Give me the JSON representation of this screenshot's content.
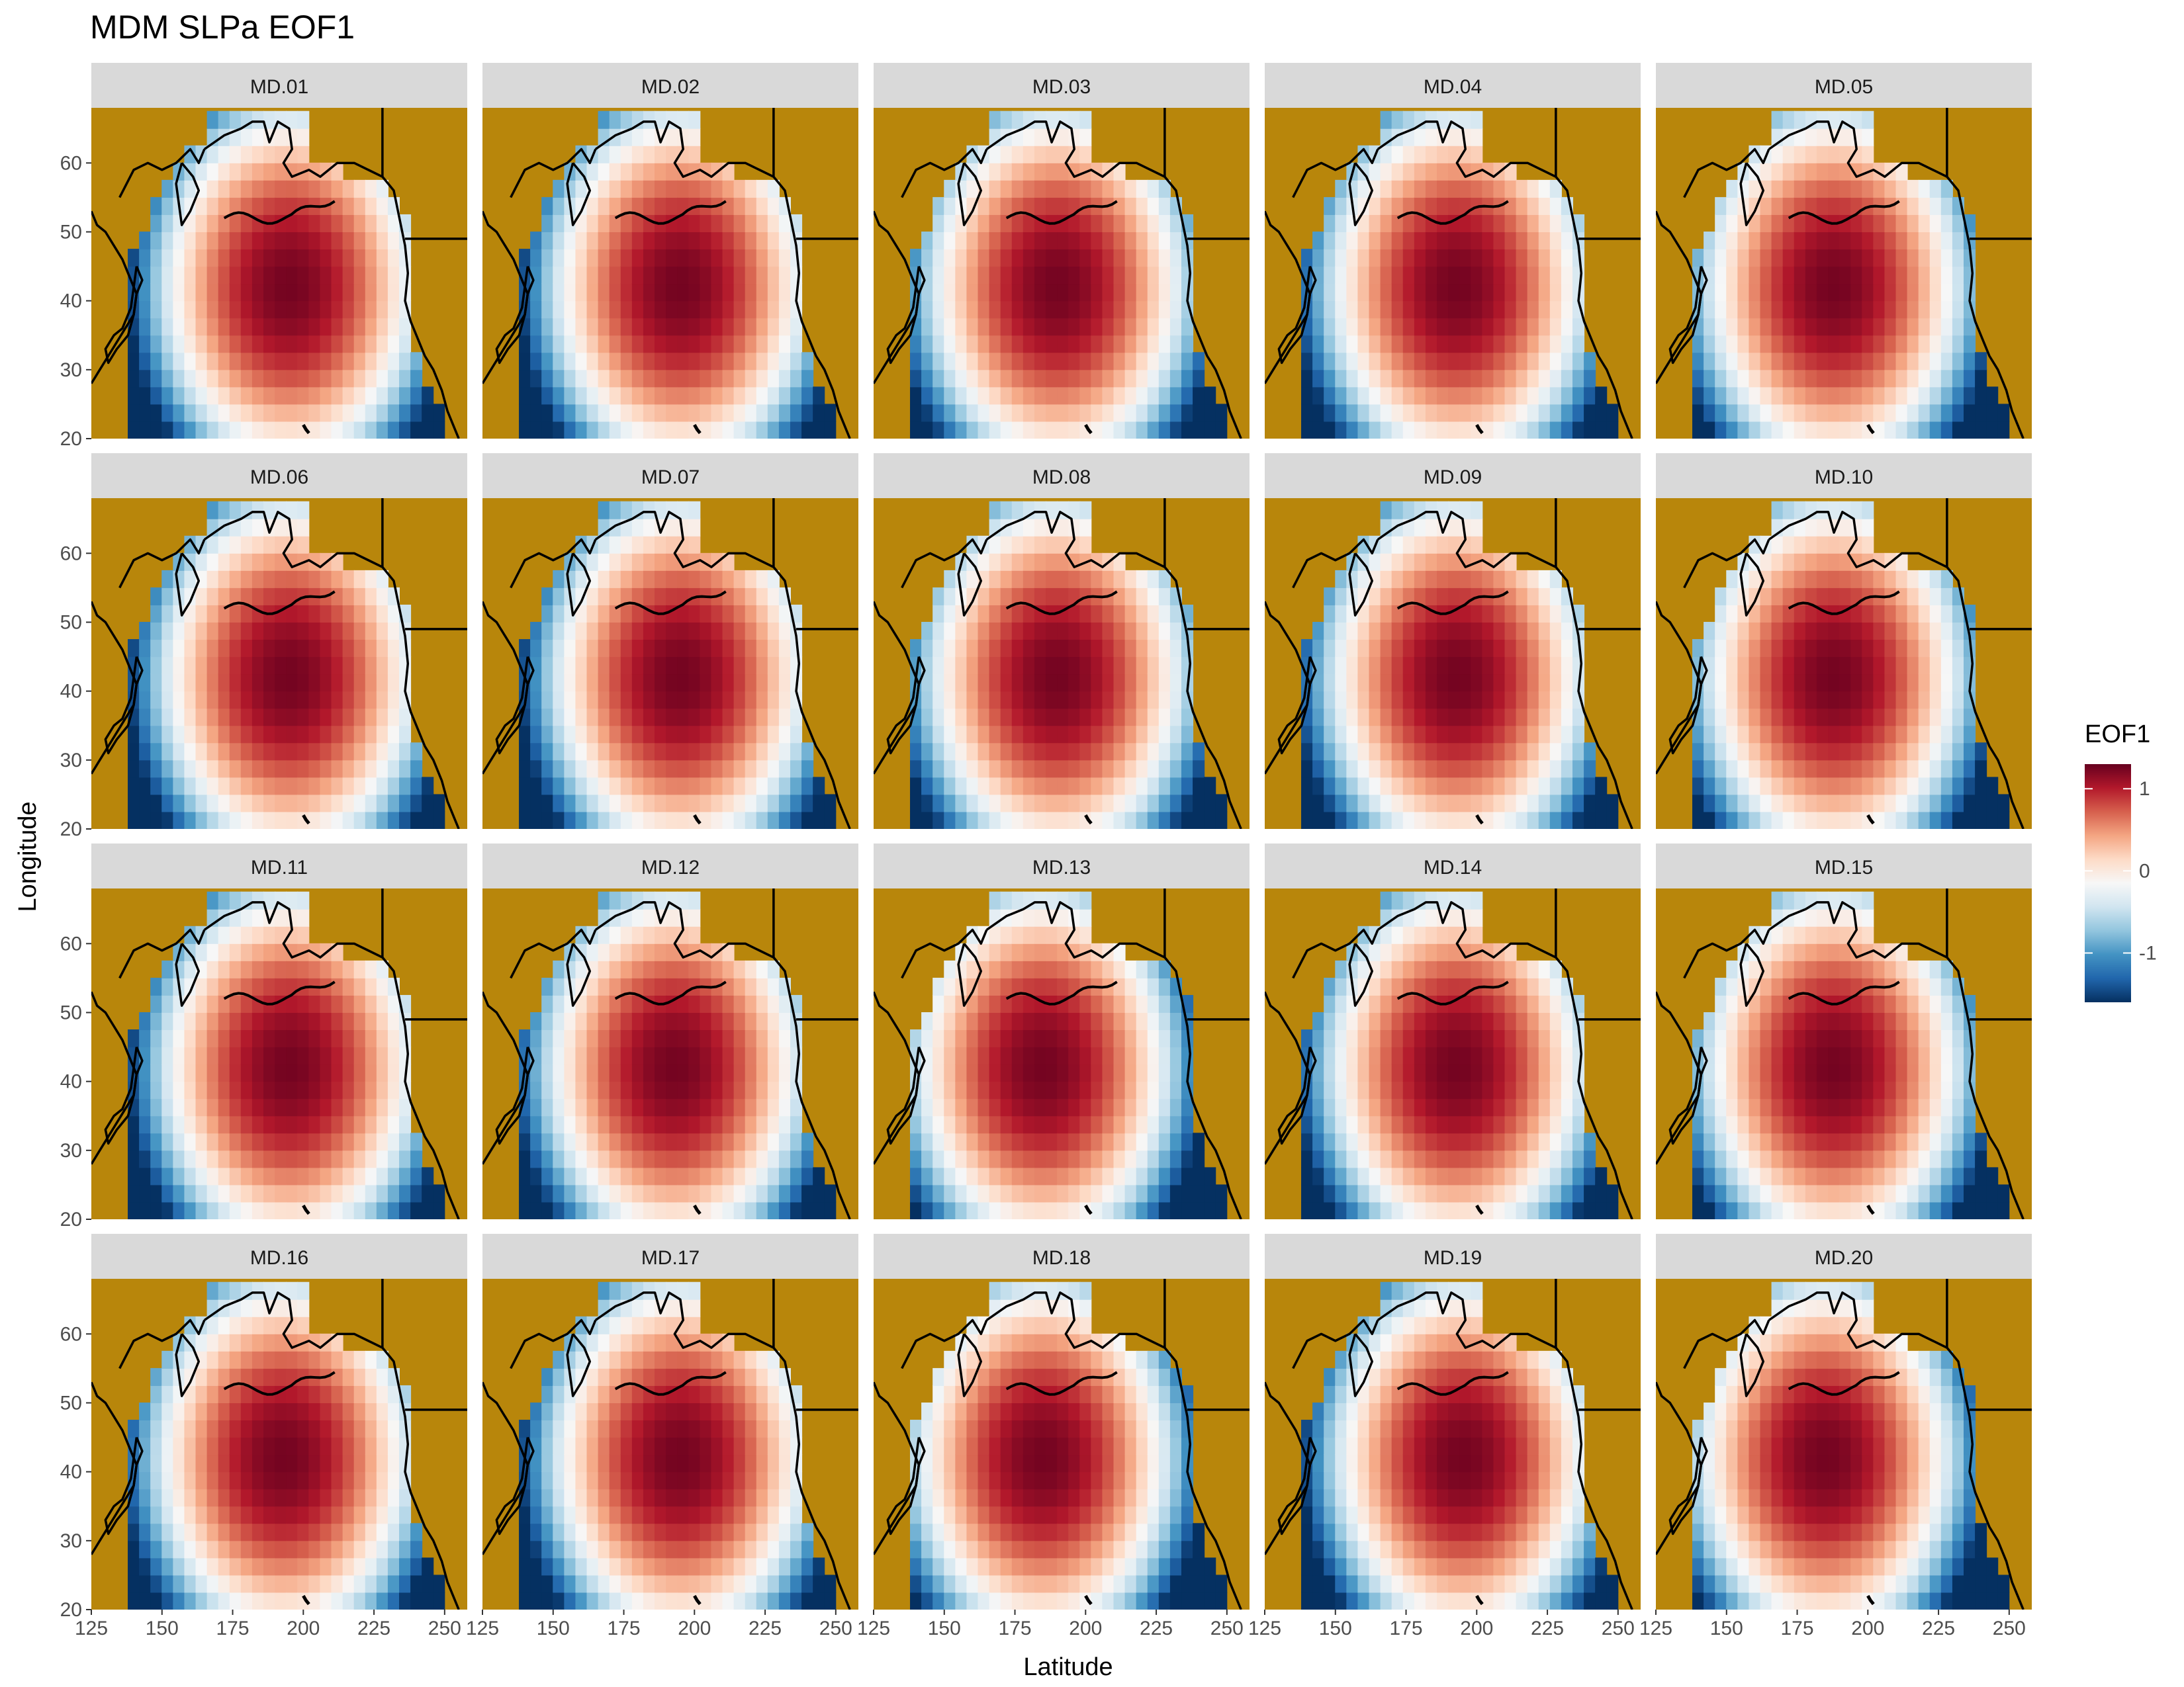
{
  "chart_data": {
    "type": "heatmap",
    "title": "MDM SLPa EOF1",
    "xlabel": "Latitude",
    "ylabel": "Longitude",
    "xlim": [
      125,
      258
    ],
    "ylim": [
      20,
      68
    ],
    "x_ticks": [
      "125",
      "150",
      "175",
      "200",
      "225",
      "250"
    ],
    "y_ticks": [
      "20",
      "30",
      "40",
      "50",
      "60"
    ],
    "x_tick_values": [
      125,
      150,
      175,
      200,
      225,
      250
    ],
    "y_tick_values": [
      20,
      30,
      40,
      50,
      60
    ],
    "grid": false,
    "facets": [
      "MD.01",
      "MD.02",
      "MD.03",
      "MD.04",
      "MD.05",
      "MD.06",
      "MD.07",
      "MD.08",
      "MD.09",
      "MD.10",
      "MD.11",
      "MD.12",
      "MD.13",
      "MD.14",
      "MD.15",
      "MD.16",
      "MD.17",
      "MD.18",
      "MD.19",
      "MD.20"
    ],
    "facet_layout": {
      "rows": 4,
      "cols": 5
    },
    "pattern_peak_lon": [
      195,
      195,
      190,
      193,
      188,
      195,
      195,
      190,
      193,
      188,
      195,
      193,
      185,
      193,
      188,
      193,
      195,
      185,
      195,
      185
    ],
    "pattern_peak_lat": 42,
    "land_color": "#B8860B",
    "legend": {
      "title": "EOF1",
      "position": "right",
      "limits": [
        -1.6,
        1.3
      ],
      "ticks": [
        1,
        0,
        -1
      ],
      "tick_labels": [
        "1",
        "0",
        "-1"
      ],
      "colors": [
        "#053061",
        "#2166AC",
        "#4393C3",
        "#92C5DE",
        "#D1E5F0",
        "#F7F7F7",
        "#FDDBC7",
        "#F4A582",
        "#D6604D",
        "#B2182B",
        "#67001F"
      ]
    }
  }
}
